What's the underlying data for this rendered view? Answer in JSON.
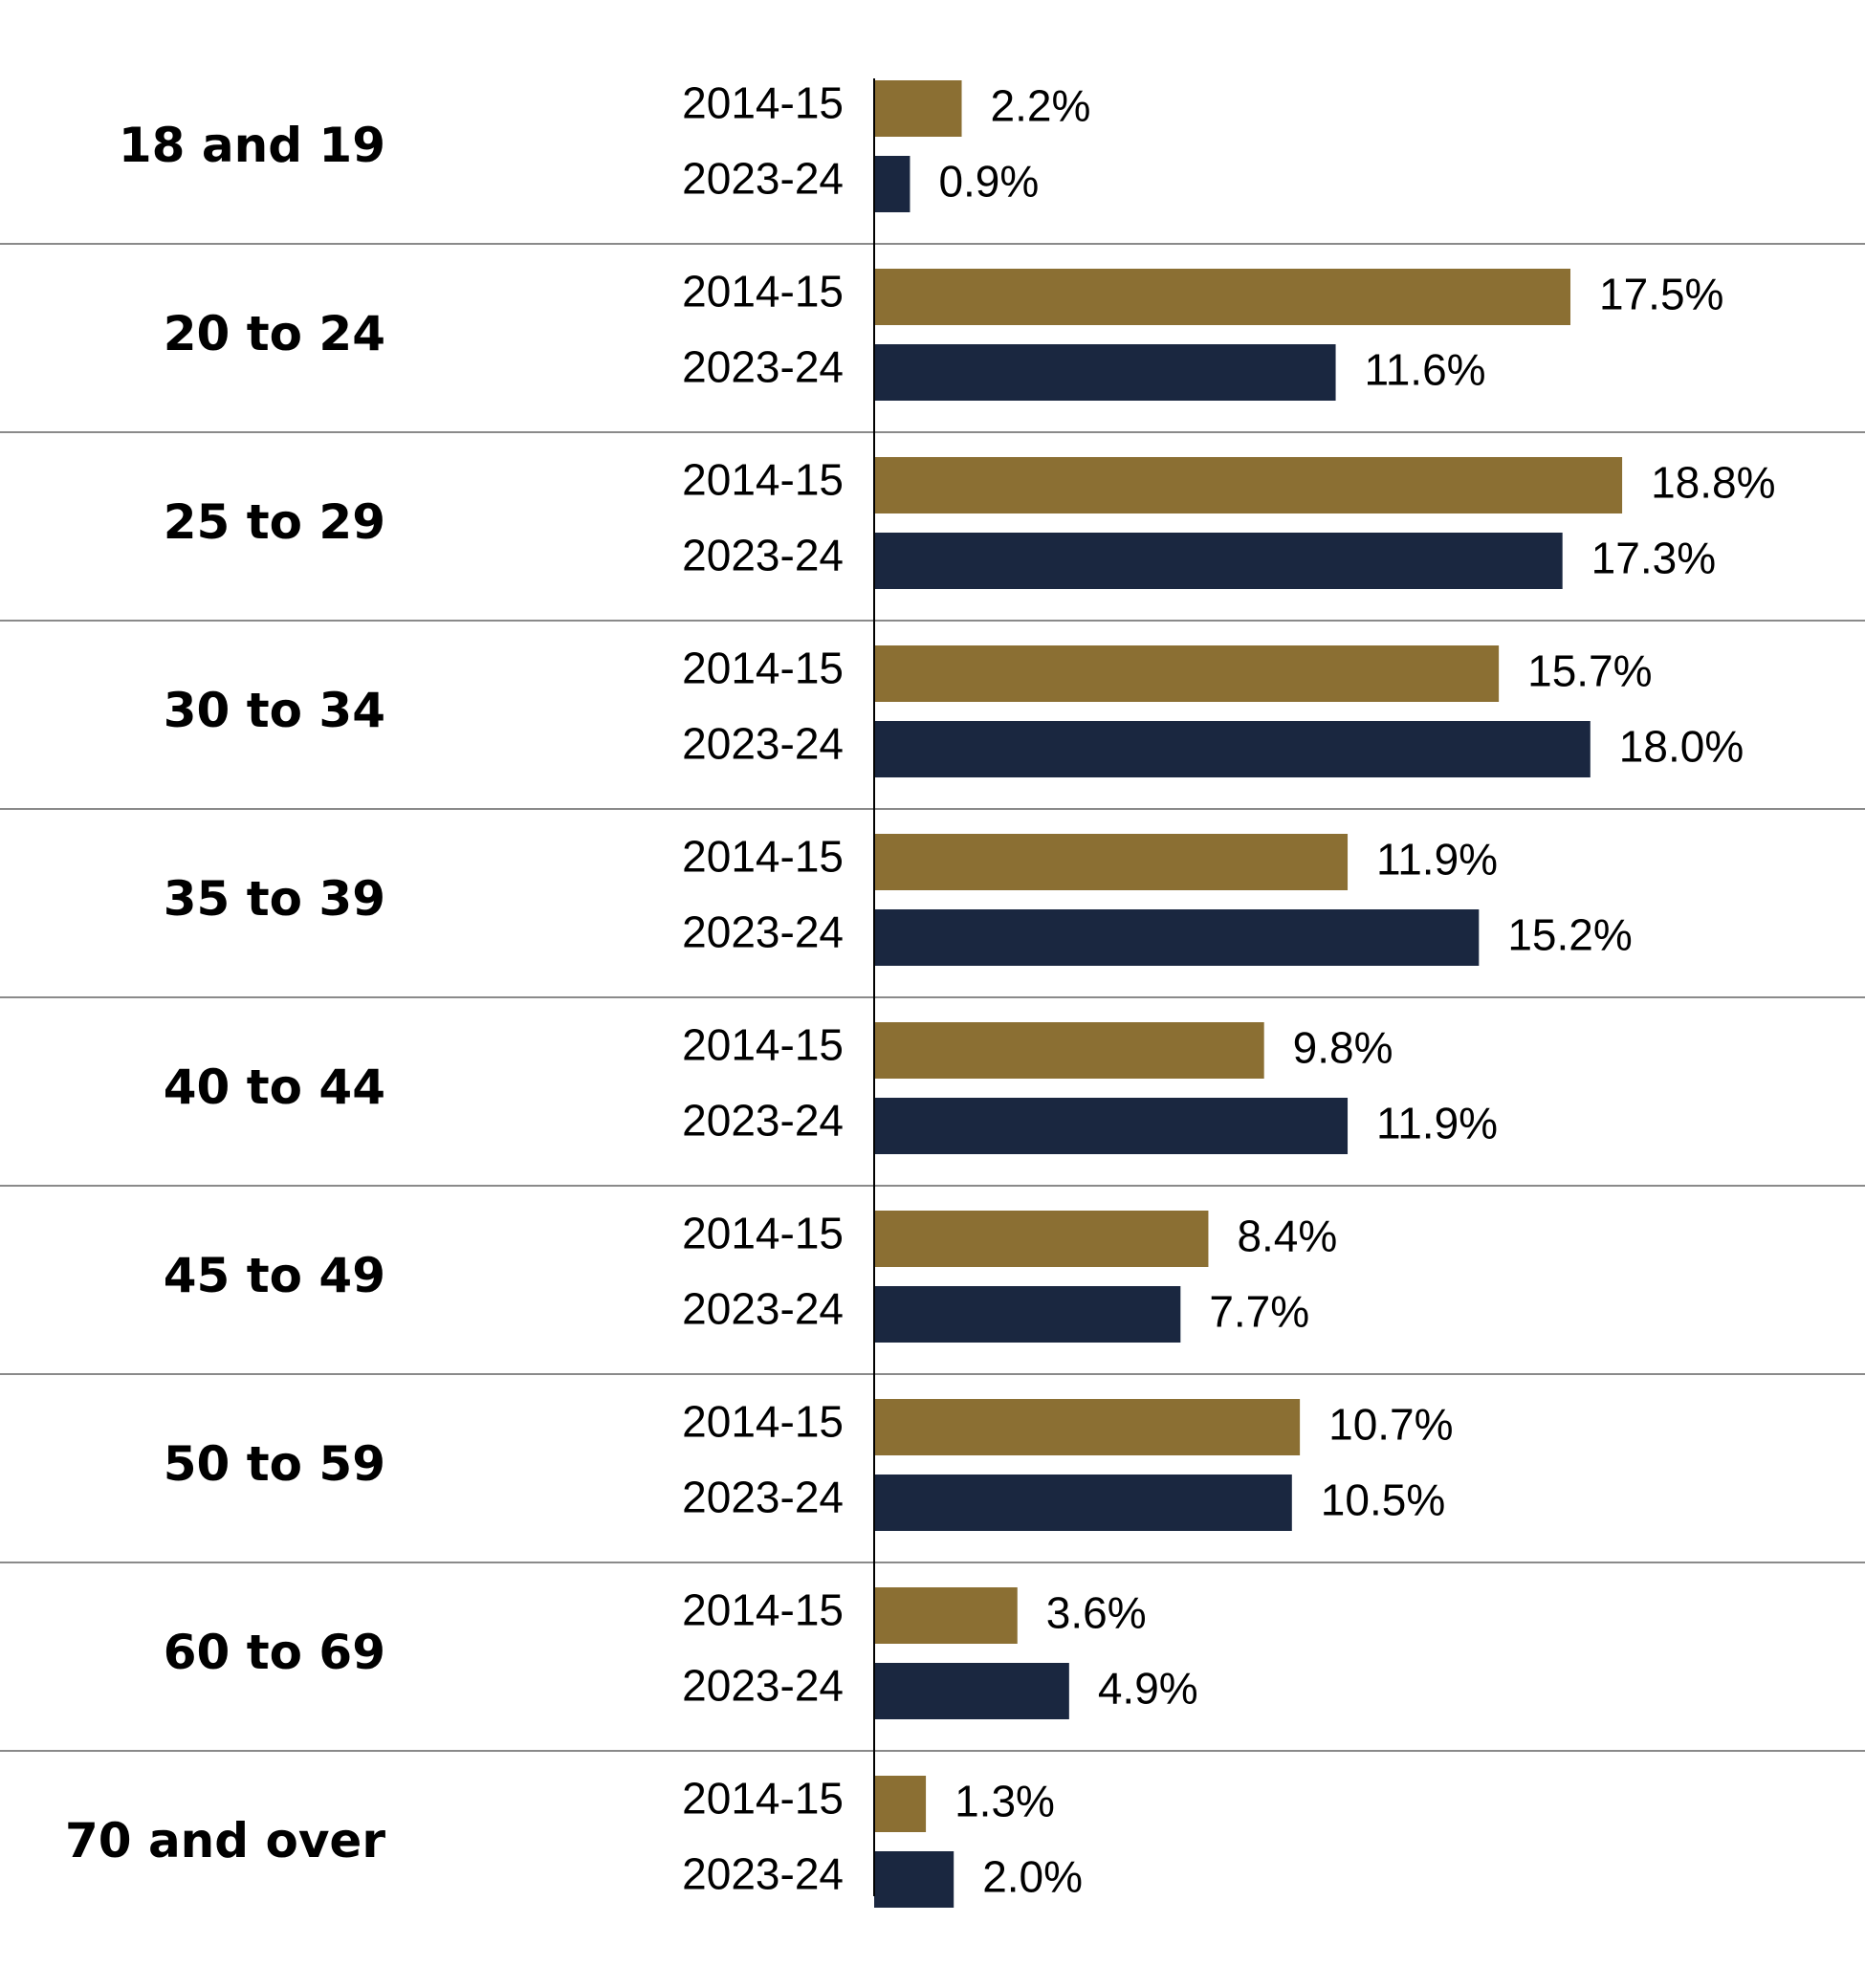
{
  "chart_data": {
    "type": "bar",
    "orientation": "horizontal",
    "categories": [
      "18 and 19",
      "20 to 24",
      "25 to 29",
      "30 to 34",
      "35 to 39",
      "40 to 44",
      "45 to 49",
      "50 to 59",
      "60 to 69",
      "70 and over"
    ],
    "series": [
      {
        "name": "2014-15",
        "color": "#8b6f33",
        "values": [
          2.2,
          17.5,
          18.8,
          15.7,
          11.9,
          9.8,
          8.4,
          10.7,
          3.6,
          1.3
        ]
      },
      {
        "name": "2023-24",
        "color": "#1a2740",
        "values": [
          0.9,
          11.6,
          17.3,
          18.0,
          15.2,
          11.9,
          7.7,
          10.5,
          4.9,
          2.0
        ]
      }
    ],
    "value_suffix": "%",
    "xlim": [
      0,
      18.8
    ],
    "grid": false,
    "legend": "none"
  }
}
